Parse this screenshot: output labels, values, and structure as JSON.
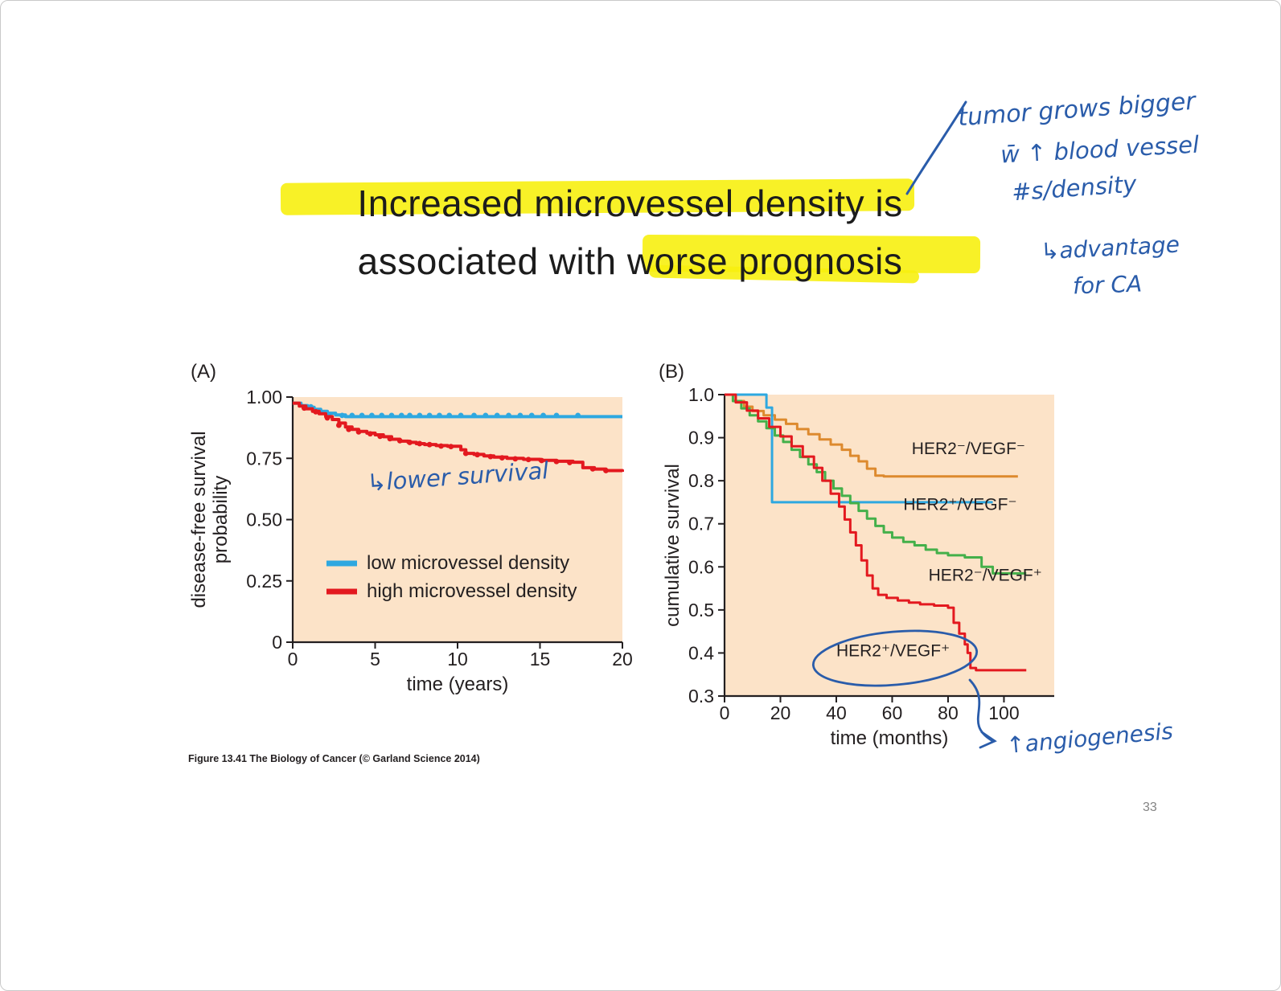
{
  "slide": {
    "title_line1": "Increased microvessel density is",
    "title_line2": "associated with worse prognosis",
    "caption": "Figure 13.41 The Biology of Cancer (© Garland Science 2014)",
    "page_number": "33",
    "highlight_color": "#f7ef0f",
    "ink_color": "#2a5caa"
  },
  "handwriting": {
    "note_top_right": [
      "tumor grows bigger",
      "w̄ ↑ blood vessel",
      "#s/density"
    ],
    "note_advantage": [
      "↳advantage",
      "for CA"
    ],
    "note_lower_survival": "↳lower survival",
    "note_angiogenesis": "↑angiogenesis"
  },
  "chart_data": [
    {
      "type": "line",
      "panel_label": "(A)",
      "xlabel": "time (years)",
      "ylabel": "disease-free survival\nprobability",
      "xlim": [
        0,
        20
      ],
      "ylim": [
        0,
        1
      ],
      "xticks": [
        "0",
        "5",
        "10",
        "15",
        "20"
      ],
      "yticks": [
        "1.00",
        "0.75",
        "0.50",
        "0.25",
        "0"
      ],
      "plot_bg": "#fce3c8",
      "legend_position": "inside-lower-left",
      "series": [
        {
          "name": "low microvessel density",
          "color": "#2ea8e0",
          "points": [
            [
              0,
              0.975
            ],
            [
              0.5,
              0.965
            ],
            [
              0.9,
              0.958
            ],
            [
              1.3,
              0.95
            ],
            [
              1.7,
              0.942
            ],
            [
              2.1,
              0.934
            ],
            [
              2.6,
              0.927
            ],
            [
              3.2,
              0.92
            ],
            [
              20,
              0.92
            ]
          ],
          "markers": [
            [
              1.1,
              0.96
            ],
            [
              2.2,
              0.93
            ],
            [
              3,
              0.925
            ],
            [
              3.6,
              0.925
            ],
            [
              4.2,
              0.925
            ],
            [
              4.8,
              0.925
            ],
            [
              5.4,
              0.925
            ],
            [
              6,
              0.925
            ],
            [
              6.6,
              0.925
            ],
            [
              7.1,
              0.925
            ],
            [
              7.7,
              0.925
            ],
            [
              8.3,
              0.925
            ],
            [
              8.9,
              0.925
            ],
            [
              9.5,
              0.925
            ],
            [
              10.2,
              0.925
            ],
            [
              11,
              0.925
            ],
            [
              11.7,
              0.925
            ],
            [
              12.4,
              0.925
            ],
            [
              13.1,
              0.925
            ],
            [
              13.8,
              0.925
            ],
            [
              14.5,
              0.925
            ],
            [
              15.2,
              0.925
            ],
            [
              16,
              0.925
            ],
            [
              17.3,
              0.925
            ]
          ]
        },
        {
          "name": "high microvessel density",
          "color": "#e3191f",
          "points": [
            [
              0,
              0.975
            ],
            [
              0.4,
              0.963
            ],
            [
              0.8,
              0.952
            ],
            [
              1.2,
              0.942
            ],
            [
              1.6,
              0.932
            ],
            [
              2,
              0.92
            ],
            [
              2.4,
              0.908
            ],
            [
              2.8,
              0.894
            ],
            [
              3.2,
              0.878
            ],
            [
              3.6,
              0.868
            ],
            [
              4,
              0.86
            ],
            [
              4.5,
              0.853
            ],
            [
              5,
              0.846
            ],
            [
              5.5,
              0.838
            ],
            [
              6,
              0.828
            ],
            [
              6.5,
              0.82
            ],
            [
              7,
              0.815
            ],
            [
              7.5,
              0.81
            ],
            [
              8,
              0.806
            ],
            [
              8.7,
              0.802
            ],
            [
              9.4,
              0.799
            ],
            [
              10.2,
              0.785
            ],
            [
              10.5,
              0.77
            ],
            [
              11,
              0.766
            ],
            [
              11.6,
              0.76
            ],
            [
              12.2,
              0.755
            ],
            [
              13,
              0.75
            ],
            [
              14,
              0.746
            ],
            [
              15,
              0.742
            ],
            [
              16,
              0.738
            ],
            [
              17,
              0.734
            ],
            [
              17.6,
              0.712
            ],
            [
              18.3,
              0.706
            ],
            [
              19,
              0.7
            ],
            [
              20,
              0.695
            ]
          ],
          "markers": [
            [
              0.7,
              0.955
            ],
            [
              1.4,
              0.94
            ],
            [
              2.1,
              0.915
            ],
            [
              2.8,
              0.885
            ],
            [
              3.4,
              0.868
            ],
            [
              4,
              0.858
            ],
            [
              4.7,
              0.85
            ],
            [
              5.3,
              0.84
            ],
            [
              5.9,
              0.83
            ],
            [
              6.5,
              0.822
            ],
            [
              7.1,
              0.815
            ],
            [
              7.7,
              0.81
            ],
            [
              8.3,
              0.806
            ],
            [
              9,
              0.8
            ],
            [
              9.6,
              0.798
            ],
            [
              10.5,
              0.77
            ],
            [
              11.2,
              0.765
            ],
            [
              12,
              0.757
            ],
            [
              12.7,
              0.752
            ],
            [
              13.5,
              0.748
            ],
            [
              14.3,
              0.745
            ],
            [
              15.1,
              0.741
            ],
            [
              16,
              0.737
            ],
            [
              16.8,
              0.733
            ],
            [
              18.2,
              0.707
            ],
            [
              19,
              0.7
            ]
          ]
        }
      ]
    },
    {
      "type": "line",
      "panel_label": "(B)",
      "xlabel": "time (months)",
      "ylabel": "cumulative survival",
      "xlim": [
        0,
        118
      ],
      "ylim": [
        0.3,
        1.0
      ],
      "xticks": [
        "0",
        "20",
        "40",
        "60",
        "80",
        "100"
      ],
      "yticks": [
        "1.0",
        "0.9",
        "0.8",
        "0.7",
        "0.6",
        "0.5",
        "0.4",
        "0.3"
      ],
      "plot_bg": "#fce3c8",
      "legend_position": "on-chart-labels",
      "series": [
        {
          "name": "HER2⁻/VEGF⁻",
          "color": "#dd8a2e",
          "label_at": [
            67,
            0.862
          ],
          "points": [
            [
              0,
              1.0
            ],
            [
              4,
              0.985
            ],
            [
              7,
              0.972
            ],
            [
              10,
              0.962
            ],
            [
              14,
              0.952
            ],
            [
              18,
              0.942
            ],
            [
              22,
              0.932
            ],
            [
              26,
              0.92
            ],
            [
              30,
              0.908
            ],
            [
              34,
              0.896
            ],
            [
              38,
              0.884
            ],
            [
              42,
              0.872
            ],
            [
              45,
              0.858
            ],
            [
              48,
              0.845
            ],
            [
              51,
              0.828
            ],
            [
              54,
              0.812
            ],
            [
              57,
              0.81
            ],
            [
              105,
              0.81
            ]
          ]
        },
        {
          "name": "HER2⁺/VEGF⁻",
          "color": "#2ea8e0",
          "label_at": [
            64,
            0.732
          ],
          "points": [
            [
              0,
              1.0
            ],
            [
              13,
              1.0
            ],
            [
              15,
              0.97
            ],
            [
              17,
              0.75
            ],
            [
              96,
              0.75
            ]
          ]
        },
        {
          "name": "HER2⁻/VEGF⁺",
          "color": "#44b04a",
          "label_at": [
            73,
            0.568
          ],
          "points": [
            [
              0,
              1.0
            ],
            [
              3,
              0.985
            ],
            [
              6,
              0.968
            ],
            [
              9,
              0.952
            ],
            [
              12,
              0.938
            ],
            [
              15,
              0.922
            ],
            [
              18,
              0.905
            ],
            [
              21,
              0.89
            ],
            [
              24,
              0.872
            ],
            [
              27,
              0.855
            ],
            [
              30,
              0.838
            ],
            [
              33,
              0.82
            ],
            [
              36,
              0.8
            ],
            [
              39,
              0.782
            ],
            [
              42,
              0.765
            ],
            [
              45,
              0.748
            ],
            [
              48,
              0.73
            ],
            [
              51,
              0.712
            ],
            [
              54,
              0.695
            ],
            [
              57,
              0.68
            ],
            [
              60,
              0.668
            ],
            [
              64,
              0.658
            ],
            [
              68,
              0.65
            ],
            [
              72,
              0.64
            ],
            [
              76,
              0.632
            ],
            [
              80,
              0.627
            ],
            [
              86,
              0.622
            ],
            [
              92,
              0.6
            ],
            [
              96,
              0.585
            ],
            [
              108,
              0.585
            ]
          ]
        },
        {
          "name": "HER2⁺/VEGF⁺",
          "color": "#e3191f",
          "label_at": [
            40,
            0.392
          ],
          "points": [
            [
              0,
              1.0
            ],
            [
              4,
              0.982
            ],
            [
              8,
              0.963
            ],
            [
              12,
              0.945
            ],
            [
              16,
              0.925
            ],
            [
              20,
              0.903
            ],
            [
              24,
              0.88
            ],
            [
              28,
              0.856
            ],
            [
              32,
              0.83
            ],
            [
              35,
              0.8
            ],
            [
              38,
              0.77
            ],
            [
              41,
              0.74
            ],
            [
              43,
              0.71
            ],
            [
              45,
              0.68
            ],
            [
              47,
              0.65
            ],
            [
              49,
              0.615
            ],
            [
              51,
              0.58
            ],
            [
              53,
              0.55
            ],
            [
              55,
              0.535
            ],
            [
              58,
              0.528
            ],
            [
              62,
              0.522
            ],
            [
              66,
              0.517
            ],
            [
              70,
              0.513
            ],
            [
              75,
              0.51
            ],
            [
              80,
              0.505
            ],
            [
              82,
              0.47
            ],
            [
              84,
              0.445
            ],
            [
              86,
              0.42
            ],
            [
              87,
              0.4
            ],
            [
              88,
              0.365
            ],
            [
              90,
              0.36
            ],
            [
              108,
              0.36
            ]
          ]
        }
      ]
    }
  ]
}
